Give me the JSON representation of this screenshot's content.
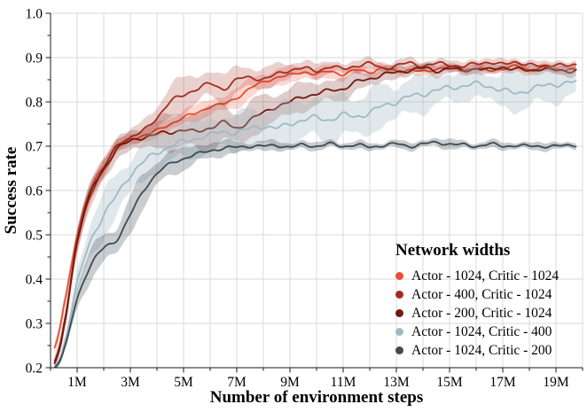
{
  "chart_data": {
    "type": "line",
    "title": "",
    "xlabel": "Number of environment steps",
    "ylabel": "Success rate",
    "x_unit": "millions of environment steps",
    "xlim_millions": [
      0,
      20
    ],
    "ylim": [
      0.2,
      1.0
    ],
    "x_major_tick_labels": [
      "1M",
      "3M",
      "5M",
      "7M",
      "9M",
      "11M",
      "13M",
      "15M",
      "17M",
      "19M"
    ],
    "x_major_tick_values_millions": [
      1,
      3,
      5,
      7,
      9,
      11,
      13,
      15,
      17,
      19
    ],
    "x_minor_tick_every_millions": 1,
    "y_tick_labels": [
      "0.2",
      "0.3",
      "0.4",
      "0.5",
      "0.6",
      "0.7",
      "0.8",
      "0.9",
      "1.0"
    ],
    "y_minor_tick_every": 0.05,
    "grid": {
      "show": true,
      "color": "#d9d9d9"
    },
    "axis_color": "#1a1a1a",
    "legend": {
      "title": "Network widths",
      "position": "lower right"
    },
    "x_millions": [
      0.15,
      0.5,
      1,
      1.5,
      2,
      2.5,
      3,
      3.5,
      4,
      4.5,
      5,
      5.5,
      6,
      6.5,
      7,
      7.5,
      8,
      8.5,
      9,
      9.5,
      10,
      10.5,
      11,
      11.5,
      12,
      12.5,
      13,
      13.5,
      14,
      14.5,
      15,
      15.5,
      16,
      16.5,
      17,
      17.5,
      18,
      18.5,
      19,
      19.5,
      19.75
    ],
    "series": [
      {
        "label": "Actor - 1024, Critic - 1024",
        "color": "#ee4c33",
        "band_opacity": 0.22,
        "jitter": 0.004,
        "values": [
          0.245,
          0.34,
          0.5,
          0.6,
          0.655,
          0.7,
          0.715,
          0.725,
          0.735,
          0.75,
          0.765,
          0.775,
          0.79,
          0.795,
          0.81,
          0.83,
          0.845,
          0.855,
          0.86,
          0.868,
          0.862,
          0.87,
          0.862,
          0.872,
          0.868,
          0.875,
          0.87,
          0.872,
          0.868,
          0.875,
          0.878,
          0.872,
          0.876,
          0.87,
          0.876,
          0.88,
          0.872,
          0.878,
          0.872,
          0.875,
          0.873
        ],
        "band": [
          0.012,
          0.016,
          0.02,
          0.02,
          0.018,
          0.015,
          0.013,
          0.013,
          0.015,
          0.016,
          0.016,
          0.016,
          0.018,
          0.018,
          0.02,
          0.02,
          0.02,
          0.018,
          0.016,
          0.015,
          0.015,
          0.013,
          0.013,
          0.012,
          0.012,
          0.011,
          0.01,
          0.01,
          0.01,
          0.01,
          0.009,
          0.009,
          0.009,
          0.009,
          0.009,
          0.009,
          0.009,
          0.009,
          0.009,
          0.009,
          0.009
        ]
      },
      {
        "label": "Actor - 400, Critic - 1024",
        "color": "#a42c1e",
        "band_opacity": 0.22,
        "jitter": 0.005,
        "values": [
          0.215,
          0.3,
          0.48,
          0.59,
          0.65,
          0.7,
          0.72,
          0.735,
          0.765,
          0.8,
          0.815,
          0.83,
          0.84,
          0.83,
          0.85,
          0.855,
          0.852,
          0.862,
          0.872,
          0.876,
          0.87,
          0.88,
          0.874,
          0.882,
          0.886,
          0.876,
          0.882,
          0.887,
          0.882,
          0.886,
          0.884,
          0.88,
          0.886,
          0.89,
          0.884,
          0.89,
          0.884,
          0.88,
          0.886,
          0.88,
          0.882
        ],
        "band": [
          0.012,
          0.016,
          0.022,
          0.022,
          0.02,
          0.016,
          0.016,
          0.02,
          0.03,
          0.035,
          0.035,
          0.032,
          0.03,
          0.03,
          0.028,
          0.025,
          0.022,
          0.02,
          0.018,
          0.016,
          0.015,
          0.013,
          0.012,
          0.012,
          0.011,
          0.011,
          0.01,
          0.01,
          0.01,
          0.01,
          0.01,
          0.01,
          0.01,
          0.009,
          0.009,
          0.009,
          0.009,
          0.009,
          0.009,
          0.009,
          0.009
        ]
      },
      {
        "label": "Actor - 200, Critic - 1024",
        "color": "#6d1b10",
        "band_opacity": 0.22,
        "jitter": 0.005,
        "values": [
          0.21,
          0.29,
          0.485,
          0.595,
          0.645,
          0.695,
          0.71,
          0.72,
          0.728,
          0.73,
          0.738,
          0.732,
          0.742,
          0.754,
          0.74,
          0.76,
          0.775,
          0.79,
          0.8,
          0.812,
          0.818,
          0.826,
          0.83,
          0.845,
          0.852,
          0.862,
          0.866,
          0.872,
          0.876,
          0.87,
          0.876,
          0.87,
          0.876,
          0.872,
          0.878,
          0.874,
          0.87,
          0.876,
          0.87,
          0.87,
          0.872
        ],
        "band": [
          0.012,
          0.016,
          0.022,
          0.026,
          0.026,
          0.02,
          0.02,
          0.026,
          0.03,
          0.036,
          0.04,
          0.042,
          0.042,
          0.04,
          0.038,
          0.036,
          0.035,
          0.032,
          0.03,
          0.028,
          0.026,
          0.025,
          0.022,
          0.02,
          0.018,
          0.015,
          0.013,
          0.012,
          0.011,
          0.011,
          0.01,
          0.01,
          0.01,
          0.01,
          0.01,
          0.01,
          0.01,
          0.01,
          0.01,
          0.01,
          0.01
        ]
      },
      {
        "label": "Actor - 1024, Critic - 400",
        "color": "#a0b9c3",
        "band_opacity": 0.32,
        "jitter": 0.007,
        "values": [
          0.2,
          0.25,
          0.39,
          0.485,
          0.545,
          0.59,
          0.635,
          0.665,
          0.685,
          0.7,
          0.71,
          0.718,
          0.725,
          0.733,
          0.73,
          0.74,
          0.745,
          0.74,
          0.752,
          0.758,
          0.765,
          0.76,
          0.77,
          0.768,
          0.775,
          0.792,
          0.8,
          0.812,
          0.818,
          0.826,
          0.832,
          0.836,
          0.84,
          0.835,
          0.826,
          0.82,
          0.828,
          0.836,
          0.84,
          0.843,
          0.845
        ],
        "band": [
          0.006,
          0.012,
          0.03,
          0.04,
          0.045,
          0.045,
          0.04,
          0.04,
          0.038,
          0.036,
          0.035,
          0.035,
          0.035,
          0.035,
          0.038,
          0.04,
          0.042,
          0.045,
          0.045,
          0.045,
          0.045,
          0.045,
          0.045,
          0.045,
          0.045,
          0.042,
          0.04,
          0.038,
          0.036,
          0.034,
          0.032,
          0.03,
          0.03,
          0.032,
          0.035,
          0.038,
          0.04,
          0.038,
          0.035,
          0.03,
          0.03
        ]
      },
      {
        "label": "Actor - 1024, Critic - 200",
        "color": "#3d4b54",
        "band_opacity": 0.28,
        "jitter": 0.004,
        "values": [
          0.2,
          0.24,
          0.355,
          0.43,
          0.47,
          0.49,
          0.545,
          0.6,
          0.638,
          0.66,
          0.672,
          0.682,
          0.69,
          0.695,
          0.698,
          0.7,
          0.7,
          0.702,
          0.698,
          0.703,
          0.7,
          0.705,
          0.7,
          0.703,
          0.698,
          0.702,
          0.705,
          0.7,
          0.705,
          0.708,
          0.705,
          0.703,
          0.7,
          0.705,
          0.7,
          0.702,
          0.7,
          0.7,
          0.7,
          0.702,
          0.703
        ],
        "band": [
          0.006,
          0.012,
          0.022,
          0.03,
          0.032,
          0.032,
          0.036,
          0.036,
          0.03,
          0.026,
          0.022,
          0.02,
          0.018,
          0.015,
          0.012,
          0.01,
          0.01,
          0.01,
          0.009,
          0.009,
          0.008,
          0.008,
          0.008,
          0.008,
          0.008,
          0.008,
          0.008,
          0.008,
          0.008,
          0.01,
          0.01,
          0.008,
          0.008,
          0.008,
          0.008,
          0.008,
          0.008,
          0.008,
          0.008,
          0.008,
          0.008
        ]
      }
    ]
  }
}
